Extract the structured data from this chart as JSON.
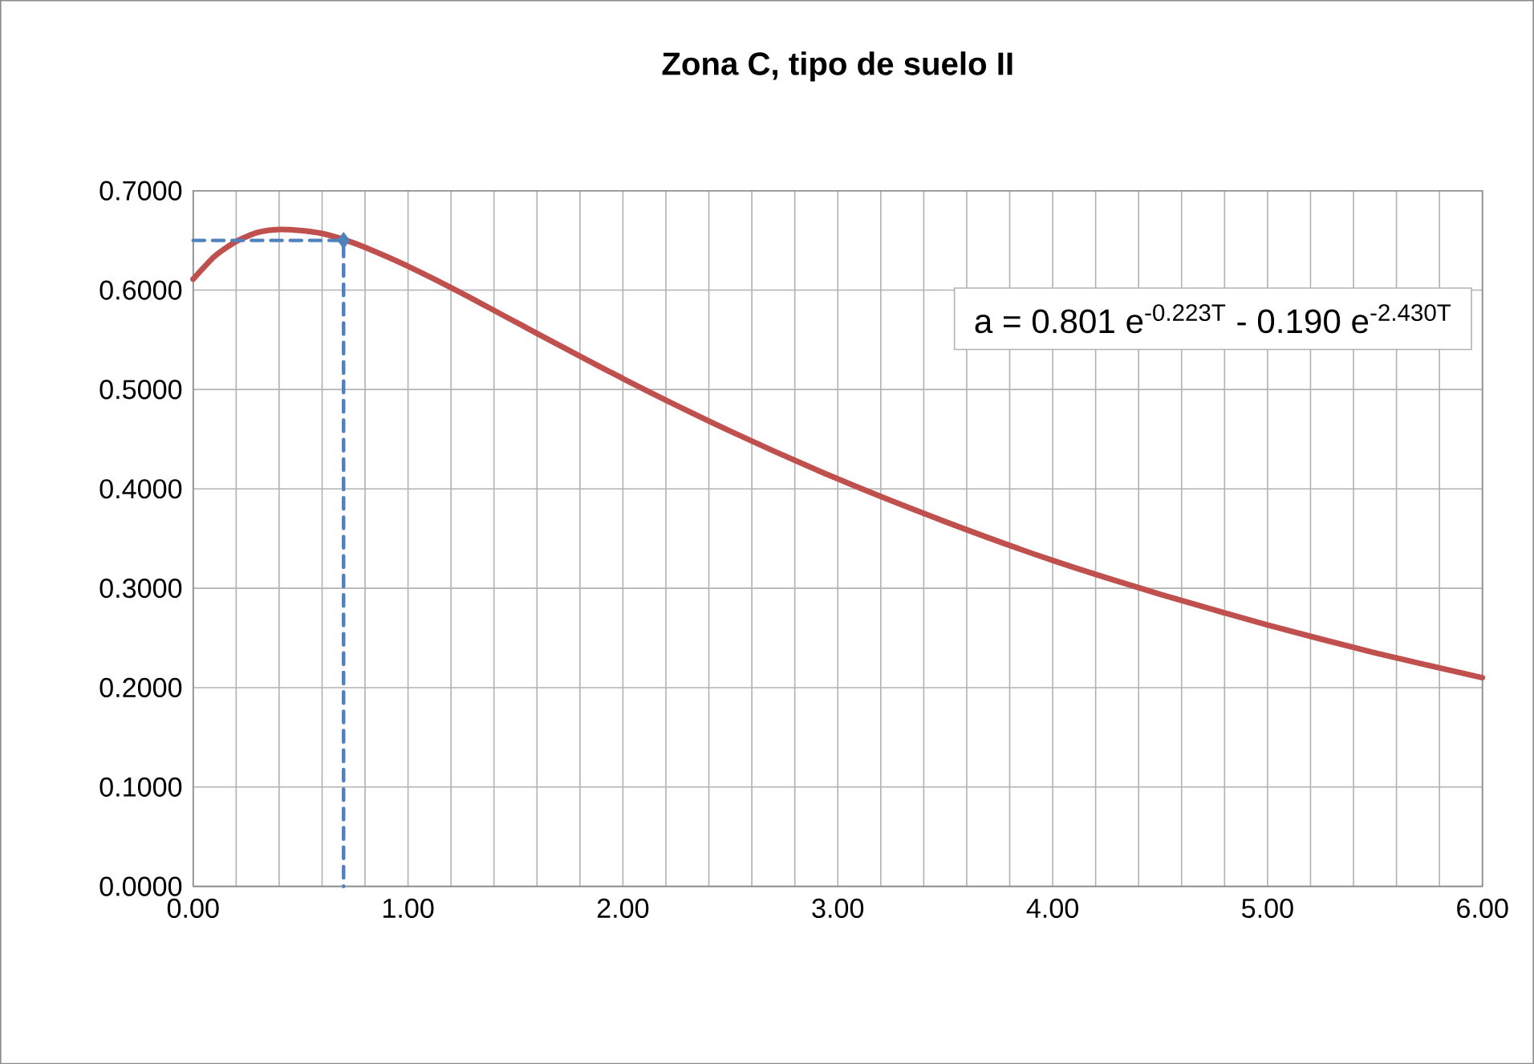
{
  "chart_data": {
    "type": "line",
    "title": "Zona C, tipo de suelo II",
    "xlim": [
      0,
      6
    ],
    "ylim": [
      0,
      0.7
    ],
    "xticks": [
      {
        "value": 0,
        "label": "0.00"
      },
      {
        "value": 0.2,
        "label": null
      },
      {
        "value": 0.4,
        "label": null
      },
      {
        "value": 0.6,
        "label": null
      },
      {
        "value": 0.8,
        "label": null
      },
      {
        "value": 1,
        "label": "1.00"
      },
      {
        "value": 1.2,
        "label": null
      },
      {
        "value": 1.4,
        "label": null
      },
      {
        "value": 1.6,
        "label": null
      },
      {
        "value": 1.8,
        "label": null
      },
      {
        "value": 2,
        "label": "2.00"
      },
      {
        "value": 2.2,
        "label": null
      },
      {
        "value": 2.4,
        "label": null
      },
      {
        "value": 2.6,
        "label": null
      },
      {
        "value": 2.8,
        "label": null
      },
      {
        "value": 3,
        "label": "3.00"
      },
      {
        "value": 3.2,
        "label": null
      },
      {
        "value": 3.4,
        "label": null
      },
      {
        "value": 3.6,
        "label": null
      },
      {
        "value": 3.8,
        "label": null
      },
      {
        "value": 4,
        "label": "4.00"
      },
      {
        "value": 4.2,
        "label": null
      },
      {
        "value": 4.4,
        "label": null
      },
      {
        "value": 4.6,
        "label": null
      },
      {
        "value": 4.8,
        "label": null
      },
      {
        "value": 5,
        "label": "5.00"
      },
      {
        "value": 5.2,
        "label": null
      },
      {
        "value": 5.4,
        "label": null
      },
      {
        "value": 5.6,
        "label": null
      },
      {
        "value": 5.8,
        "label": null
      },
      {
        "value": 6,
        "label": "6.00"
      }
    ],
    "yticks": [
      {
        "value": 0,
        "label": "0.0000"
      },
      {
        "value": 0.1,
        "label": "0.1000"
      },
      {
        "value": 0.2,
        "label": "0.2000"
      },
      {
        "value": 0.3,
        "label": "0.3000"
      },
      {
        "value": 0.4,
        "label": "0.4000"
      },
      {
        "value": 0.5,
        "label": "0.5000"
      },
      {
        "value": 0.6,
        "label": "0.6000"
      },
      {
        "value": 0.7,
        "label": "0.7000"
      }
    ],
    "grid": true,
    "annotations": [
      "a = 0.801 e$^{-0.223T}$  - 0.190 e$^{-2.430T}$"
    ],
    "series": [
      {
        "color": "#c0504d",
        "line_style": "solid",
        "marker": "none",
        "x": [
          0,
          0.1,
          0.2,
          0.3,
          0.4,
          0.5,
          0.6,
          0.7,
          0.8,
          1.0,
          1.25,
          1.5,
          2.0,
          2.5,
          3.0,
          3.5,
          4.0,
          4.5,
          5.0,
          5.5,
          6.0
        ],
        "values": [
          0.611,
          0.634,
          0.649,
          0.658,
          0.661,
          0.66,
          0.657,
          0.651,
          0.643,
          0.624,
          0.597,
          0.568,
          0.511,
          0.458,
          0.41,
          0.367,
          0.328,
          0.294,
          0.263,
          0.235,
          0.21
        ]
      },
      {
        "color": "#4f81bd",
        "line_style": "dashed",
        "marker": "none",
        "x": [
          0,
          0.7,
          0.7
        ],
        "values": [
          0.65,
          0.65,
          0
        ]
      },
      {
        "type": "scatter",
        "color": "#4f81bd",
        "marker": "diamond",
        "x": [
          0.7
        ],
        "values": [
          0.65
        ]
      }
    ]
  }
}
